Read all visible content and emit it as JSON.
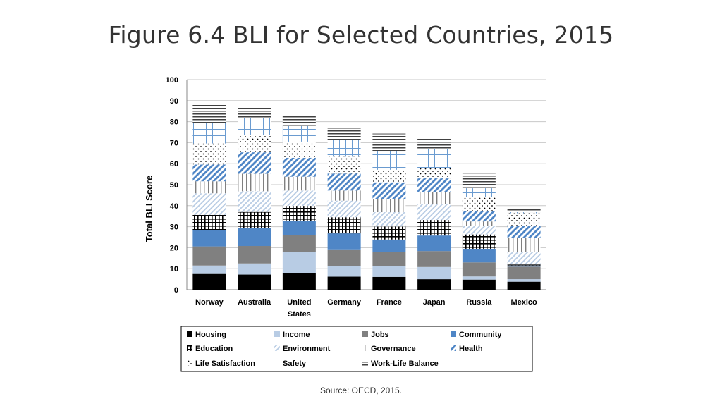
{
  "title": "Figure 6.4 BLI for Selected Countries, 2015",
  "source": "Source: OECD, 2015.",
  "chart_data": {
    "type": "bar",
    "stacked": true,
    "ylabel": "Total BLI Score",
    "ylim": [
      0,
      100
    ],
    "yticks": [
      0,
      10,
      20,
      30,
      40,
      50,
      60,
      70,
      80,
      90,
      100
    ],
    "grid": true,
    "legend_position": "bottom",
    "categories": [
      [
        "Norway"
      ],
      [
        "Australia"
      ],
      [
        "United",
        "States"
      ],
      [
        "Germany"
      ],
      [
        "France"
      ],
      [
        "Japan"
      ],
      [
        "Russia"
      ],
      [
        "Mexico"
      ]
    ],
    "series": [
      {
        "name": "Housing",
        "color": "#000000",
        "pattern": "solid",
        "values": [
          7.5,
          7.2,
          7.8,
          6.2,
          6.1,
          5.0,
          4.8,
          3.8
        ]
      },
      {
        "name": "Income",
        "color": "#b8cce4",
        "pattern": "solid",
        "values": [
          4.0,
          5.3,
          10.0,
          5.2,
          5.0,
          5.8,
          1.5,
          1.2
        ]
      },
      {
        "name": "Jobs",
        "color": "#808080",
        "pattern": "solid",
        "values": [
          9.1,
          8.3,
          8.2,
          7.8,
          6.9,
          7.6,
          6.7,
          6.0
        ]
      },
      {
        "name": "Community",
        "color": "#4f86c6",
        "pattern": "solid",
        "values": [
          7.6,
          8.5,
          6.7,
          7.6,
          5.9,
          7.4,
          6.5,
          0.5
        ]
      },
      {
        "name": "Education",
        "color": "#000000",
        "pattern": "grid",
        "values": [
          7.4,
          7.7,
          7.2,
          7.7,
          6.2,
          7.4,
          6.8,
          0.5
        ]
      },
      {
        "name": "Environment",
        "color": "#b8cce4",
        "pattern": "diag-light",
        "values": [
          10.3,
          9.9,
          7.3,
          7.9,
          6.8,
          7.5,
          4.0,
          6.0
        ]
      },
      {
        "name": "Governance",
        "color": "#808080",
        "pattern": "vertical",
        "values": [
          5.7,
          8.3,
          6.6,
          4.8,
          6.3,
          5.8,
          2.2,
          6.5
        ]
      },
      {
        "name": "Health",
        "color": "#4f86c6",
        "pattern": "diag-bold",
        "values": [
          8.0,
          10.2,
          9.0,
          8.1,
          7.9,
          6.5,
          4.9,
          5.9
        ]
      },
      {
        "name": "Life Satisfaction",
        "color": "#000000",
        "pattern": "dots",
        "values": [
          10.0,
          8.1,
          7.7,
          8.0,
          6.0,
          5.0,
          6.8,
          6.0
        ]
      },
      {
        "name": "Safety",
        "color": "#4f86c6",
        "pattern": "cross",
        "values": [
          9.8,
          8.3,
          7.4,
          8.1,
          9.0,
          8.8,
          4.1,
          0.5
        ]
      },
      {
        "name": "Work-Life Balance",
        "color": "#404040",
        "pattern": "horizontal",
        "values": [
          8.6,
          4.8,
          5.4,
          6.3,
          8.2,
          5.5,
          7.0,
          1.9
        ]
      }
    ]
  }
}
